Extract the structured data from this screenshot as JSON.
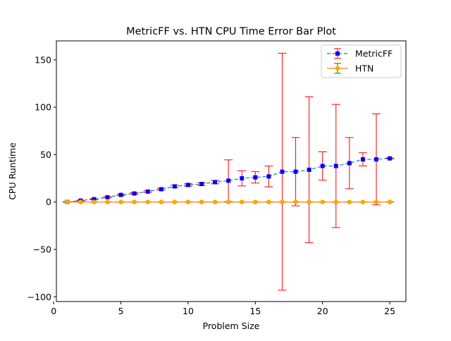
{
  "chart_data": {
    "type": "line",
    "title": "MetricFF vs. HTN CPU Time Error Bar Plot",
    "xlabel": "Problem Size",
    "ylabel": "CPU Runtime",
    "xlim": [
      0.2,
      26.2
    ],
    "ylim": [
      -105,
      170
    ],
    "xticks": [
      0,
      5,
      10,
      15,
      20,
      25
    ],
    "yticks": [
      -100,
      -50,
      0,
      50,
      100,
      150
    ],
    "legend_position": "top-right",
    "grid": false,
    "series": [
      {
        "name": "MetricFF",
        "color": "#0000ff",
        "line_color": "#1f77b4",
        "line_style": "dashed",
        "marker": "square",
        "errorbar_color": "#ff0000",
        "x": [
          1,
          2,
          3,
          4,
          5,
          6,
          7,
          8,
          9,
          10,
          11,
          12,
          13,
          14,
          15,
          16,
          17,
          18,
          19,
          20,
          21,
          22,
          23,
          24,
          25
        ],
        "y": [
          0.1,
          1.5,
          3,
          5,
          7.5,
          9,
          11,
          13.5,
          16.5,
          18,
          19,
          21,
          22.5,
          25,
          26,
          27,
          32,
          32,
          34,
          38,
          38,
          41,
          45,
          45,
          46
        ],
        "err": [
          0.3,
          0.4,
          0.5,
          0.6,
          0.7,
          0.8,
          0.9,
          1,
          1.2,
          1.3,
          1.5,
          1.8,
          22,
          8,
          6,
          11,
          125,
          36,
          77,
          15,
          65,
          27,
          7,
          48,
          0.5
        ]
      },
      {
        "name": "HTN",
        "color": "#ffa500",
        "line_color": "#ff7f0e",
        "line_style": "solid",
        "marker": "circle",
        "errorbar_color": "#008000",
        "x": [
          1,
          2,
          3,
          4,
          5,
          6,
          7,
          8,
          9,
          10,
          11,
          12,
          13,
          14,
          15,
          16,
          17,
          18,
          19,
          20,
          21,
          22,
          23,
          24,
          25
        ],
        "y": [
          0,
          0,
          0,
          0,
          0,
          0,
          0,
          0,
          0,
          0,
          0,
          0,
          0,
          0,
          0,
          0,
          0,
          0,
          0,
          0,
          0,
          0,
          0,
          0,
          0
        ],
        "err": [
          0,
          0,
          0,
          0,
          0,
          0,
          0,
          0,
          0,
          0,
          0,
          0,
          0,
          0,
          0,
          0,
          0,
          0,
          0,
          0,
          0,
          0,
          0,
          0,
          0
        ]
      }
    ]
  }
}
